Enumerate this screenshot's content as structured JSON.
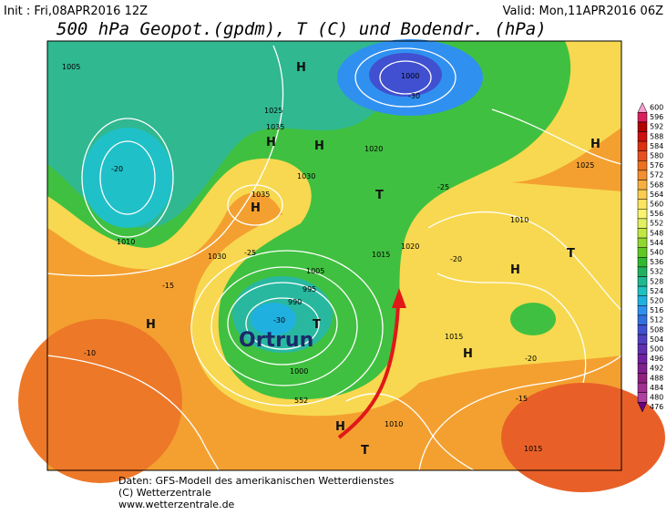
{
  "header": {
    "init": "Init : Fri,08APR2016 12Z",
    "valid": "Valid: Mon,11APR2016 06Z",
    "title": "500 hPa Geopot.(gpdm), T (C) und Bodendr. (hPa)"
  },
  "map": {
    "storm_name": "Ortrun",
    "labels": [
      "1005",
      "1010",
      "1015",
      "1020",
      "1025",
      "1030",
      "1035",
      "1000",
      "995",
      "990",
      "1005",
      "1015",
      "1020",
      "1010",
      "1025",
      "1030",
      "1035",
      "1000",
      "1010",
      "1015",
      "H",
      "H",
      "H",
      "H",
      "H",
      "H",
      "H",
      "T",
      "T",
      "T",
      "T",
      "H",
      "H",
      "-20",
      "-25",
      "-30",
      "-15",
      "-10",
      "-20",
      "-25",
      "-30",
      "-15",
      "-20",
      "552"
    ]
  },
  "legend": {
    "labels": [
      600,
      596,
      592,
      588,
      584,
      580,
      576,
      572,
      568,
      564,
      560,
      556,
      552,
      548,
      544,
      540,
      536,
      532,
      528,
      524,
      520,
      516,
      512,
      508,
      504,
      500,
      496,
      492,
      488,
      484,
      480,
      476
    ],
    "colors": [
      "#f4a0d0",
      "#d82060",
      "#b00000",
      "#cc1010",
      "#dc3010",
      "#e45020",
      "#ec7020",
      "#f29030",
      "#f6b040",
      "#facc50",
      "#fce460",
      "#f8f470",
      "#e0f060",
      "#c0e840",
      "#90d830",
      "#60c820",
      "#30b830",
      "#20b060",
      "#20b890",
      "#20c0c0",
      "#20b0e0",
      "#3090f0",
      "#3070e0",
      "#4050d0",
      "#5040c0",
      "#6030b0",
      "#7020a0",
      "#802090",
      "#902080",
      "#a03090",
      "#b040a0",
      "#6a0080"
    ]
  },
  "footer": {
    "lines": [
      "Daten: GFS-Modell des amerikanischen Wetterdienstes",
      "(C) Wetterzentrale",
      "www.wetterzentrale.de"
    ]
  }
}
